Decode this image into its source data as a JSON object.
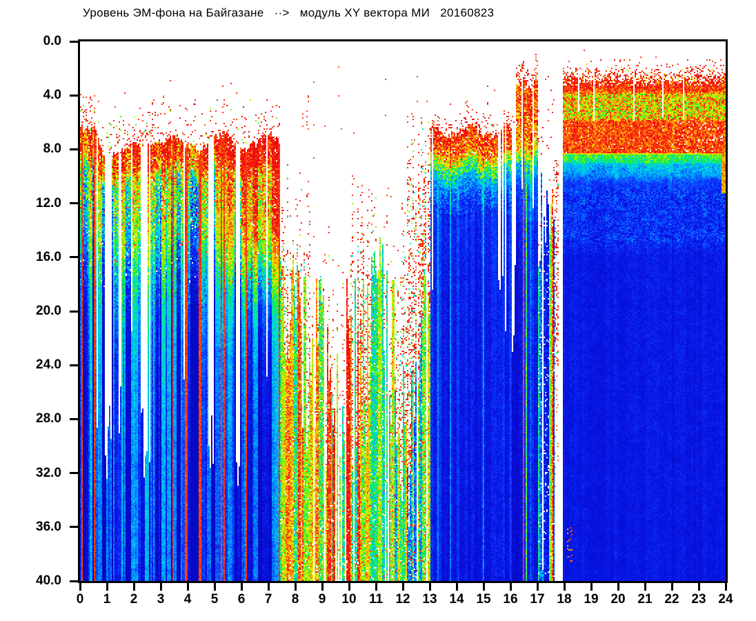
{
  "window": {
    "background": "#ffffff"
  },
  "chart_data": {
    "type": "heatmap",
    "subtype": "spectrogram",
    "title": "Уровень ЭМ-фона на Байгазане   ··>   модуль XY вектора МИ   20160823",
    "station": "Байгазане",
    "quantity": "модуль XY вектора МИ",
    "date": "20160823",
    "xlabel": "",
    "ylabel": "",
    "x_range": [
      0,
      24
    ],
    "y_range": [
      0,
      40
    ],
    "y_inverted": true,
    "grid": false,
    "legend": "none",
    "x_tick_labels": [
      "0",
      "1",
      "2",
      "3",
      "4",
      "5",
      "6",
      "7",
      "8",
      "9",
      "10",
      "11",
      "12",
      "13",
      "14",
      "15",
      "16",
      "17",
      "18",
      "19",
      "20",
      "21",
      "22",
      "23",
      "24"
    ],
    "y_tick_labels": [
      "0.0",
      "4.0",
      "8.0",
      "12.0",
      "16.0",
      "20.0",
      "24.0",
      "28.0",
      "32.0",
      "36.0",
      "40.0"
    ],
    "colormap": "jet-like: white = no data / below threshold, blue = low, cyan/green = mid, yellow/red = high",
    "colormap_stops": [
      [
        0.0,
        6,
        10,
        196
      ],
      [
        0.1,
        8,
        22,
        228
      ],
      [
        0.2,
        14,
        60,
        255
      ],
      [
        0.3,
        0,
        150,
        255
      ],
      [
        0.38,
        0,
        210,
        240
      ],
      [
        0.46,
        0,
        232,
        150
      ],
      [
        0.52,
        30,
        235,
        60
      ],
      [
        0.6,
        140,
        245,
        10
      ],
      [
        0.7,
        235,
        235,
        0
      ],
      [
        0.8,
        255,
        170,
        0
      ],
      [
        0.88,
        255,
        80,
        20
      ],
      [
        1.0,
        238,
        14,
        14
      ]
    ],
    "summary_intensity_grid": {
      "note": "approximate mean intensity (0=blue low .. 1=red high, null=white/no data) read from the image; rows = frequency bands (top to bottom), columns = hours 0..23",
      "freq_bands": [
        "0-4",
        "4-8",
        "8-12",
        "12-16",
        "16-20",
        "20-24",
        "24-28",
        "28-32",
        "32-36",
        "36-40"
      ],
      "hours": [
        0,
        1,
        2,
        3,
        4,
        5,
        6,
        7,
        8,
        9,
        10,
        11,
        12,
        13,
        14,
        15,
        16,
        17,
        18,
        19,
        20,
        21,
        22,
        23
      ],
      "values": [
        [
          null,
          null,
          null,
          null,
          null,
          null,
          null,
          null,
          null,
          null,
          null,
          null,
          0.3,
          0.4,
          null,
          0.5,
          0.8,
          0.5,
          0.9,
          0.9,
          0.9,
          0.9,
          0.9,
          0.9
        ],
        [
          0.5,
          0.3,
          0.4,
          0.4,
          0.3,
          0.4,
          0.5,
          0.4,
          0.2,
          0.1,
          0.2,
          0.3,
          0.6,
          0.9,
          0.9,
          0.9,
          0.9,
          0.6,
          0.92,
          0.92,
          0.92,
          0.92,
          0.92,
          0.92
        ],
        [
          0.8,
          0.75,
          0.8,
          0.8,
          0.8,
          0.8,
          0.8,
          0.6,
          0.2,
          0.15,
          0.25,
          0.4,
          0.5,
          0.7,
          0.6,
          0.6,
          0.65,
          0.5,
          0.45,
          0.45,
          0.45,
          0.45,
          0.45,
          0.45
        ],
        [
          0.55,
          0.5,
          0.55,
          0.55,
          0.6,
          0.65,
          0.65,
          0.5,
          0.2,
          0.2,
          0.3,
          0.35,
          0.4,
          0.3,
          0.25,
          0.25,
          0.4,
          0.3,
          0.22,
          0.22,
          0.22,
          0.22,
          0.22,
          0.22
        ],
        [
          0.4,
          0.38,
          0.4,
          0.4,
          0.45,
          0.5,
          0.5,
          0.4,
          0.25,
          0.25,
          0.3,
          0.3,
          0.35,
          0.15,
          0.12,
          0.12,
          0.3,
          0.2,
          0.12,
          0.12,
          0.12,
          0.12,
          0.12,
          0.12
        ],
        [
          0.3,
          0.3,
          0.3,
          0.3,
          0.35,
          0.35,
          0.35,
          0.35,
          0.3,
          0.3,
          0.35,
          0.35,
          0.4,
          0.12,
          0.1,
          0.1,
          0.3,
          0.18,
          0.1,
          0.1,
          0.1,
          0.1,
          0.1,
          0.1
        ],
        [
          0.25,
          0.25,
          0.25,
          0.25,
          0.3,
          0.3,
          0.3,
          0.4,
          0.45,
          0.45,
          0.45,
          0.45,
          0.45,
          0.1,
          0.1,
          0.1,
          0.3,
          0.15,
          0.1,
          0.1,
          0.1,
          0.1,
          0.1,
          0.1
        ],
        [
          0.22,
          0.22,
          0.22,
          0.22,
          0.25,
          0.25,
          0.25,
          0.55,
          0.6,
          0.65,
          0.6,
          0.55,
          0.5,
          0.1,
          0.1,
          0.1,
          0.35,
          0.15,
          0.1,
          0.1,
          0.1,
          0.1,
          0.1,
          0.1
        ],
        [
          0.2,
          0.2,
          0.2,
          0.2,
          0.22,
          0.22,
          0.22,
          0.6,
          0.7,
          0.7,
          0.6,
          0.55,
          0.5,
          0.1,
          0.1,
          0.1,
          0.35,
          0.15,
          0.1,
          0.1,
          0.1,
          0.1,
          0.1,
          0.1
        ],
        [
          0.2,
          0.2,
          0.2,
          0.2,
          0.22,
          0.22,
          0.22,
          0.65,
          0.7,
          0.75,
          0.65,
          0.6,
          0.5,
          0.1,
          0.1,
          0.1,
          0.35,
          0.15,
          0.1,
          0.1,
          0.1,
          0.1,
          0.1,
          0.1
        ]
      ]
    },
    "features": [
      "00:00-07:30 dense striped columns: red speckle cap near 8 Hz, green 9-15, cyan/blue below; sparse red dots up to 4 Hz near 0h, 1.9h, 3.3h",
      "white column gaps near 1.0h, 2.4h, 4.85h, 5.85h",
      "07:30-13:00 midday: sparse red dotted columns above ~20; dense red/yellow/green stripe bundle below ~20-27 turning green then sparse by 12.5h",
      "13:05-16:20 dense block: red cap 6.5-9, green/cyan 9-11, solid blue below; thin red full-height stripes",
      "16:20-17:05 tall columns reaching ~2.2 with red speckle caps and white gaps",
      "17:05-17:60 colorful stripe bundle below ~10-18, white above with sparse dots",
      "17:60-17:95 white gap with a red dotted column near 17.7h",
      "18:00-24:00 solid block: sparse red speckle 1.3-3.3, red band to 8.2 with yellow/green mix 4-6, green line 8.3-8.9, cyan 9-10, blue below with cyan speckle band 11.5-14.8; thin white vertical lines"
    ],
    "render_model": {
      "seed": 20160823,
      "regions": {
        "A_end": 7.45,
        "B_end": 13.05,
        "C_end": 16.2,
        "D_end": 17.05,
        "E_end": 17.62,
        "F_end": 17.97
      },
      "A": {
        "cap_base": 7.6,
        "cap_var": 2.2,
        "gaps": [
          [
            0.93,
            1.2
          ],
          [
            2.28,
            2.52
          ],
          [
            4.78,
            4.97
          ],
          [
            5.78,
            5.97
          ]
        ],
        "speck_spikes": [
          0.3,
          1.3,
          1.9,
          2.3,
          2.75,
          3.35,
          3.9,
          4.65,
          5.3,
          6.1,
          6.9
        ],
        "profile": [
          [
            0,
            0.95
          ],
          [
            1.6,
            0.87
          ],
          [
            2.7,
            0.58
          ],
          [
            6.5,
            0.47
          ],
          [
            10,
            0.3
          ],
          [
            13,
            0.22
          ]
        ],
        "tail": [
          [
            24,
            0.165
          ],
          [
            31,
            0.125
          ],
          [
            40,
            0.105
          ]
        ],
        "red_deep": {
          "start_h": 4.3,
          "ramp": 2.2,
          "amp": 0.3,
          "f0": 13,
          "sigma": 5.5
        }
      },
      "B": {
        "mean_early": 0.64,
        "mean_mid": 0.52,
        "mean_late": 0.46,
        "mean_end": 0.38
      },
      "C": {
        "profile": [
          [
            0,
            0.96
          ],
          [
            1.7,
            0.86
          ],
          [
            2.8,
            0.52
          ],
          [
            4,
            0.3
          ],
          [
            6,
            0.165
          ]
        ],
        "tail": [
          [
            18,
            0.135
          ],
          [
            40,
            0.1
          ]
        ]
      },
      "D": {
        "profile": [
          [
            0,
            0.92
          ],
          [
            4.5,
            0.84
          ],
          [
            6,
            0.45
          ],
          [
            7.6,
            0.27
          ]
        ],
        "tail": [
          [
            15,
            0.15
          ],
          [
            40,
            0.1
          ]
        ]
      },
      "F": {
        "dot_column": [
          17.66,
          17.78
        ]
      },
      "G": {
        "speck_start": 1.3,
        "red_top": 3.3,
        "bands": [
          [
            3.3,
            0.93,
            0.11
          ],
          [
            3.7,
            0.9,
            0.13
          ],
          [
            3.95,
            0.75,
            0.23
          ],
          [
            5.75,
            0.73,
            0.23
          ],
          [
            5.95,
            0.9,
            0.12
          ],
          [
            8.25,
            0.9,
            0.12
          ],
          [
            8.4,
            0.54,
            0.1
          ],
          [
            8.95,
            0.48,
            0.1
          ],
          [
            9.1,
            0.37,
            0.08
          ],
          [
            9.95,
            0.3,
            0.07
          ],
          [
            10.5,
            0.2,
            0.05
          ],
          [
            11.4,
            0.17,
            0.095
          ],
          [
            14.8,
            0.16,
            0.09
          ],
          [
            15.9,
            0.105,
            0.04
          ],
          [
            40,
            0.093,
            0.035
          ]
        ],
        "white_lines": [
          18.55,
          19.1,
          20.6,
          21.65,
          22.45
        ],
        "hole_base": 0.015,
        "hole_amp": 0.055
      }
    }
  }
}
